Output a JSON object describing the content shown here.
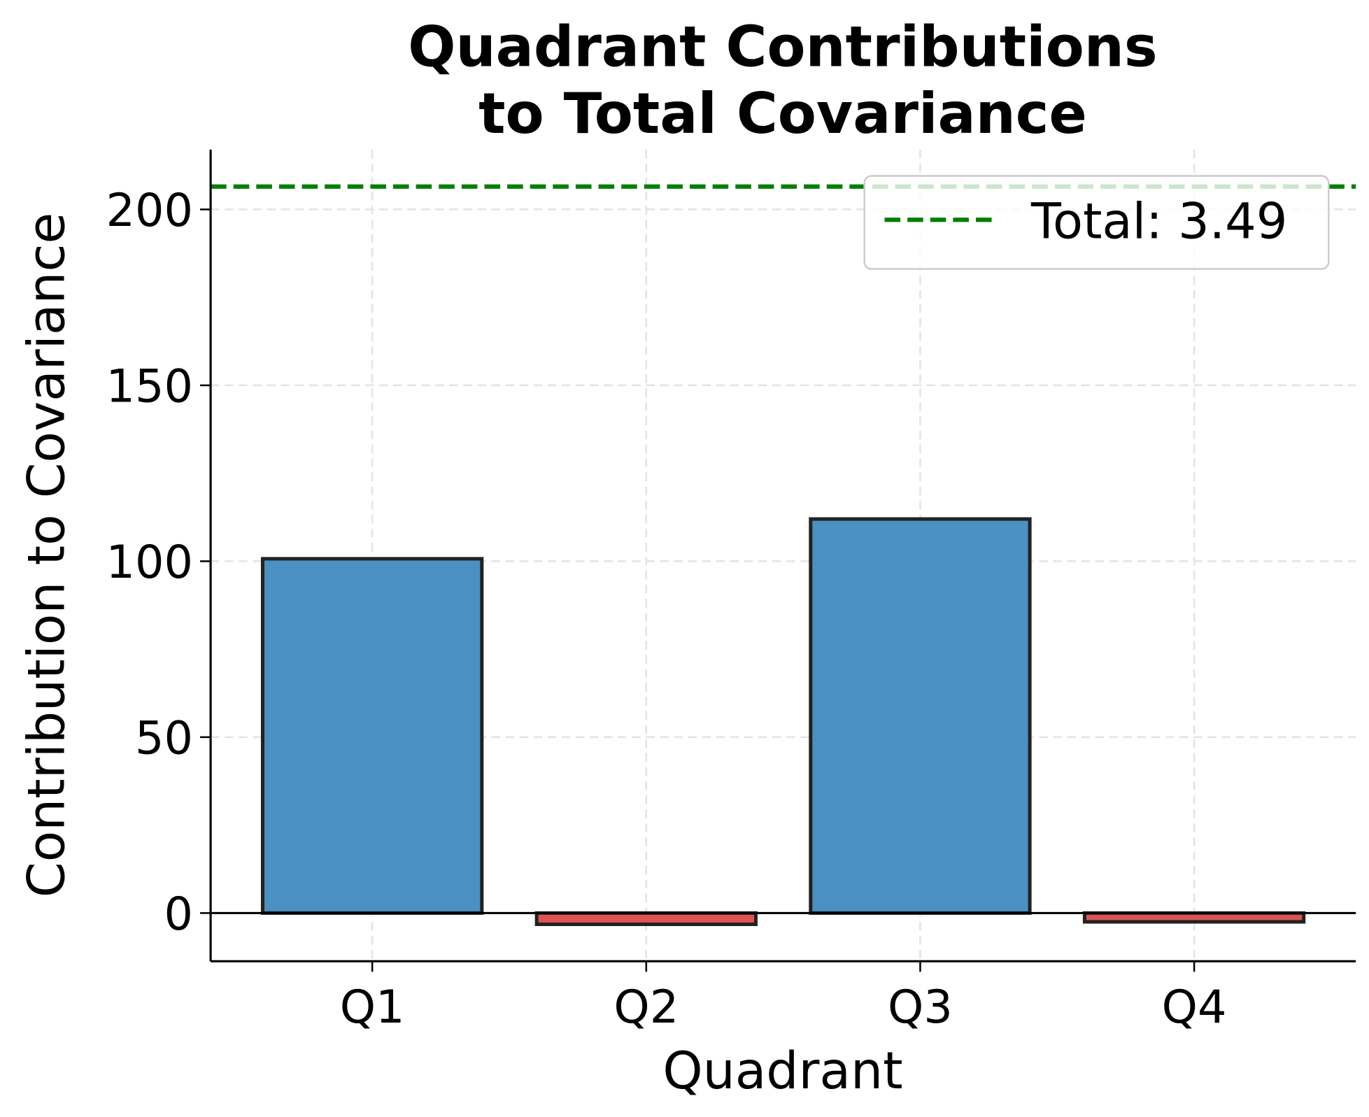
{
  "chart_data": {
    "type": "bar",
    "title": "Quadrant Contributions\nto Total Covariance",
    "title_lines": [
      "Quadrant Contributions",
      "to Total Covariance"
    ],
    "xlabel": "Quadrant",
    "ylabel": "Contribution to Covariance",
    "categories": [
      "Q1",
      "Q2",
      "Q3",
      "Q4"
    ],
    "values": [
      100.7,
      -3.2,
      112.0,
      -2.5
    ],
    "bar_colors": [
      "#4a90c2",
      "#e05252",
      "#4a90c2",
      "#e05252"
    ],
    "edge_color": "#222222",
    "ylim": [
      -13.7,
      217
    ],
    "xlim": [
      -0.59,
      3.59
    ],
    "yticks": [
      0,
      50,
      100,
      150,
      200
    ],
    "grid": true,
    "reference_line": {
      "value": 206.5,
      "color": "#008000",
      "style": "dashed",
      "label": "Total: 3.49"
    },
    "legend": {
      "placement": "top-right",
      "entries": [
        "Total: 3.49"
      ]
    }
  }
}
